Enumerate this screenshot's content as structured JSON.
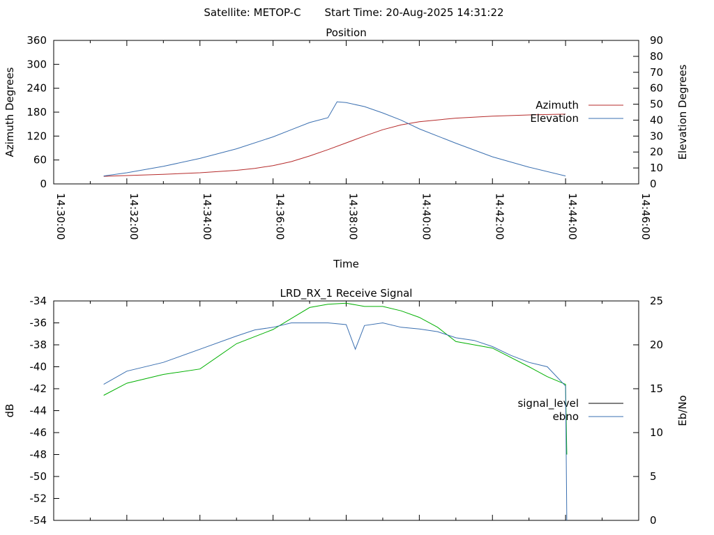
{
  "header": {
    "satellite": "Satellite: METOP-C",
    "start_time": "Start Time: 20-Aug-2025 14:31:22"
  },
  "colors": {
    "azimuth": "#b52a2a",
    "elevation": "#3a6fb0",
    "signal_level": "#00b000",
    "ebno": "#3a6fb0",
    "axis": "#000000"
  },
  "chart_data": [
    {
      "type": "line",
      "title": "Position",
      "xlabel": "Time",
      "ylabel": "Azimuth Degrees",
      "y2label": "Elevation Degrees",
      "xlim": [
        "14:30:00",
        "14:46:00"
      ],
      "x_ticks": [
        "14:30:00",
        "14:32:00",
        "14:34:00",
        "14:36:00",
        "14:38:00",
        "14:40:00",
        "14:42:00",
        "14:44:00",
        "14:46:00"
      ],
      "ylim": [
        0,
        360
      ],
      "y_ticks": [
        0,
        60,
        120,
        180,
        240,
        300,
        360
      ],
      "y2lim": [
        0,
        90
      ],
      "y2_ticks": [
        0,
        10,
        20,
        30,
        40,
        50,
        60,
        70,
        80,
        90
      ],
      "legend_position": "right",
      "series": [
        {
          "name": "Azimuth",
          "axis": "y",
          "x": [
            "14:31:22",
            "14:32:00",
            "14:33:00",
            "14:34:00",
            "14:35:00",
            "14:35:30",
            "14:36:00",
            "14:36:30",
            "14:37:00",
            "14:37:30",
            "14:38:00",
            "14:38:30",
            "14:39:00",
            "14:39:30",
            "14:40:00",
            "14:41:00",
            "14:42:00",
            "14:43:00",
            "14:44:00"
          ],
          "values": [
            19,
            21,
            24,
            28,
            34,
            39,
            46,
            56,
            70,
            86,
            103,
            120,
            136,
            148,
            156,
            165,
            170,
            173,
            175
          ]
        },
        {
          "name": "Elevation",
          "axis": "y2",
          "x": [
            "14:31:22",
            "14:32:00",
            "14:33:00",
            "14:34:00",
            "14:35:00",
            "14:36:00",
            "14:36:30",
            "14:37:00",
            "14:37:30",
            "14:37:45",
            "14:38:00",
            "14:38:30",
            "14:39:00",
            "14:39:30",
            "14:40:00",
            "14:41:00",
            "14:42:00",
            "14:43:00",
            "14:44:00"
          ],
          "values": [
            5,
            7,
            11,
            16,
            22,
            29.5,
            34,
            38.5,
            41.5,
            51.5,
            51,
            48.5,
            44.5,
            40,
            34.5,
            25.5,
            17,
            10.5,
            5
          ]
        }
      ]
    },
    {
      "type": "line",
      "title": "LRD_RX_1 Receive Signal",
      "xlabel": "",
      "ylabel": "dB",
      "y2label": "Eb/No",
      "xlim": [
        "14:30:00",
        "14:46:00"
      ],
      "ylim": [
        -54,
        -34
      ],
      "y_ticks": [
        -54,
        -52,
        -50,
        -48,
        -46,
        -44,
        -42,
        -40,
        -38,
        -36,
        -34
      ],
      "y2lim": [
        0,
        25
      ],
      "y2_ticks": [
        0,
        5,
        10,
        15,
        20,
        25
      ],
      "legend_position": "right",
      "series": [
        {
          "name": "signal_level",
          "axis": "y",
          "x": [
            "14:31:22",
            "14:32:00",
            "14:33:00",
            "14:34:00",
            "14:35:00",
            "14:36:00",
            "14:36:30",
            "14:37:00",
            "14:37:30",
            "14:38:00",
            "14:38:30",
            "14:39:00",
            "14:39:30",
            "14:40:00",
            "14:40:30",
            "14:41:00",
            "14:41:30",
            "14:42:00",
            "14:43:00",
            "14:43:30",
            "14:44:00",
            "14:44:02"
          ],
          "values": [
            -42.6,
            -41.5,
            -40.7,
            -40.2,
            -37.9,
            -36.6,
            -35.6,
            -34.6,
            -34.3,
            -34.2,
            -34.5,
            -34.5,
            -34.9,
            -35.5,
            -36.4,
            -37.7,
            -38.0,
            -38.3,
            -40.0,
            -40.9,
            -41.6,
            -48.0
          ]
        },
        {
          "name": "ebno",
          "axis": "y2",
          "x": [
            "14:31:22",
            "14:32:00",
            "14:33:00",
            "14:34:00",
            "14:35:00",
            "14:35:30",
            "14:36:00",
            "14:36:30",
            "14:37:00",
            "14:37:30",
            "14:38:00",
            "14:38:15",
            "14:38:30",
            "14:39:00",
            "14:39:30",
            "14:40:00",
            "14:40:30",
            "14:41:00",
            "14:41:30",
            "14:42:00",
            "14:42:30",
            "14:43:00",
            "14:43:30",
            "14:44:00",
            "14:44:02"
          ],
          "values": [
            15.5,
            17.0,
            18.0,
            19.5,
            21.0,
            21.7,
            22.0,
            22.5,
            22.5,
            22.5,
            22.3,
            19.5,
            22.2,
            22.5,
            22.0,
            21.8,
            21.5,
            20.8,
            20.5,
            19.8,
            18.8,
            18.0,
            17.5,
            15.3,
            0.0
          ]
        }
      ]
    }
  ]
}
